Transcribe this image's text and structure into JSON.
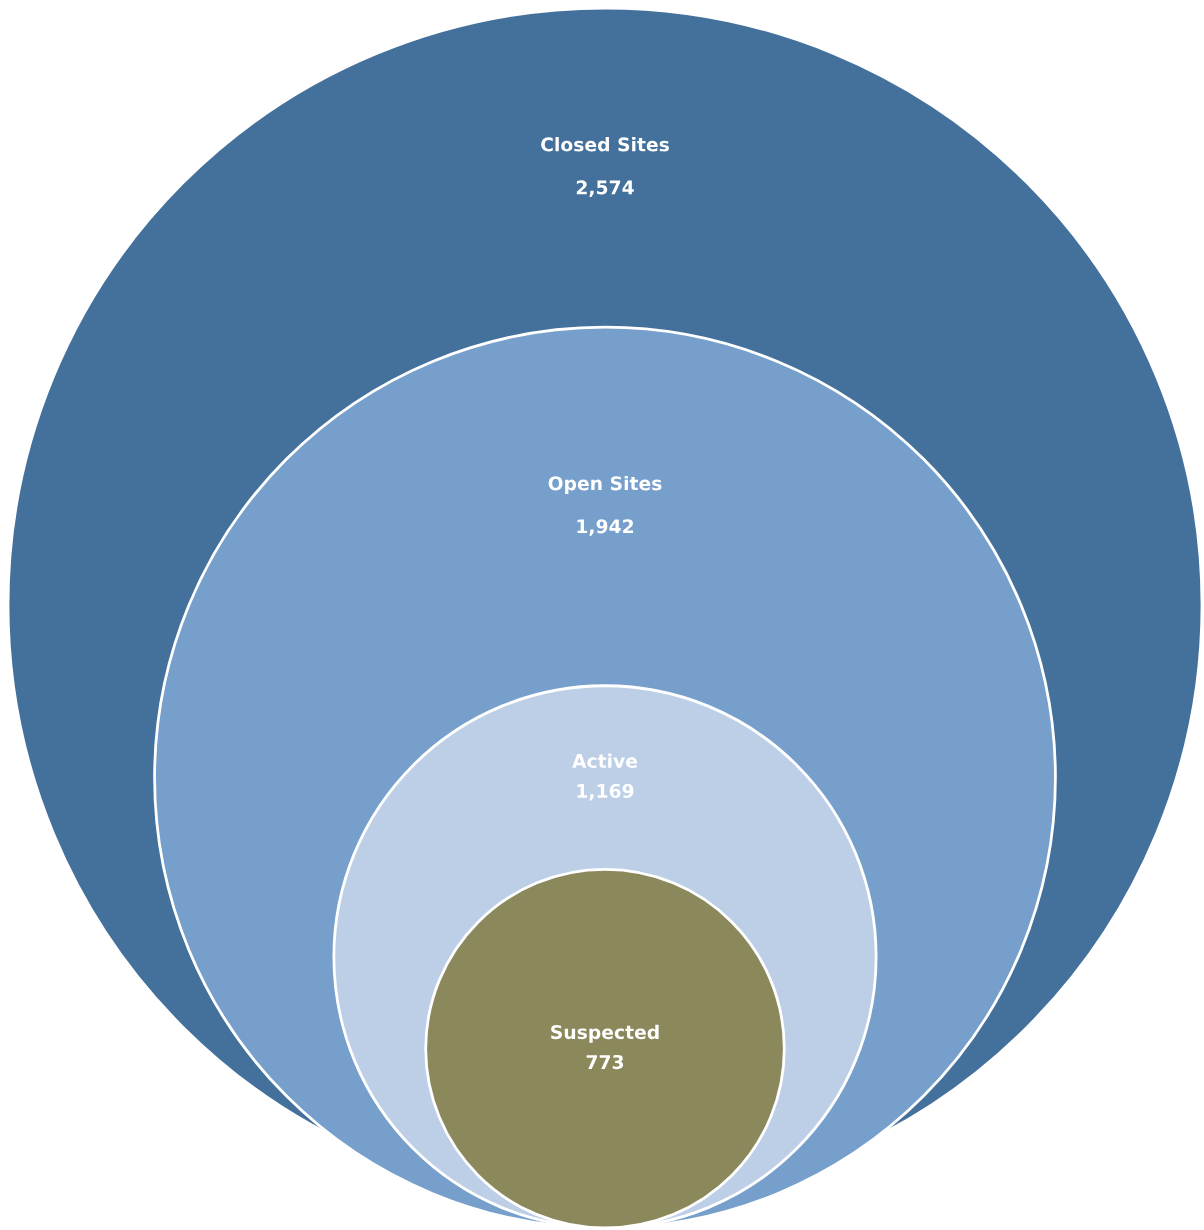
{
  "chart_data": {
    "type": "other",
    "categories": [
      "Closed Sites",
      "Open Sites",
      "Active",
      "Suspected"
    ],
    "values": [
      2574,
      1942,
      1169,
      773
    ],
    "value_labels": [
      "2,574",
      "1,942",
      "1,169",
      "773"
    ],
    "colors": [
      "#44719c",
      "#779fcc",
      "#bccfe7",
      "#8b885c"
    ]
  }
}
